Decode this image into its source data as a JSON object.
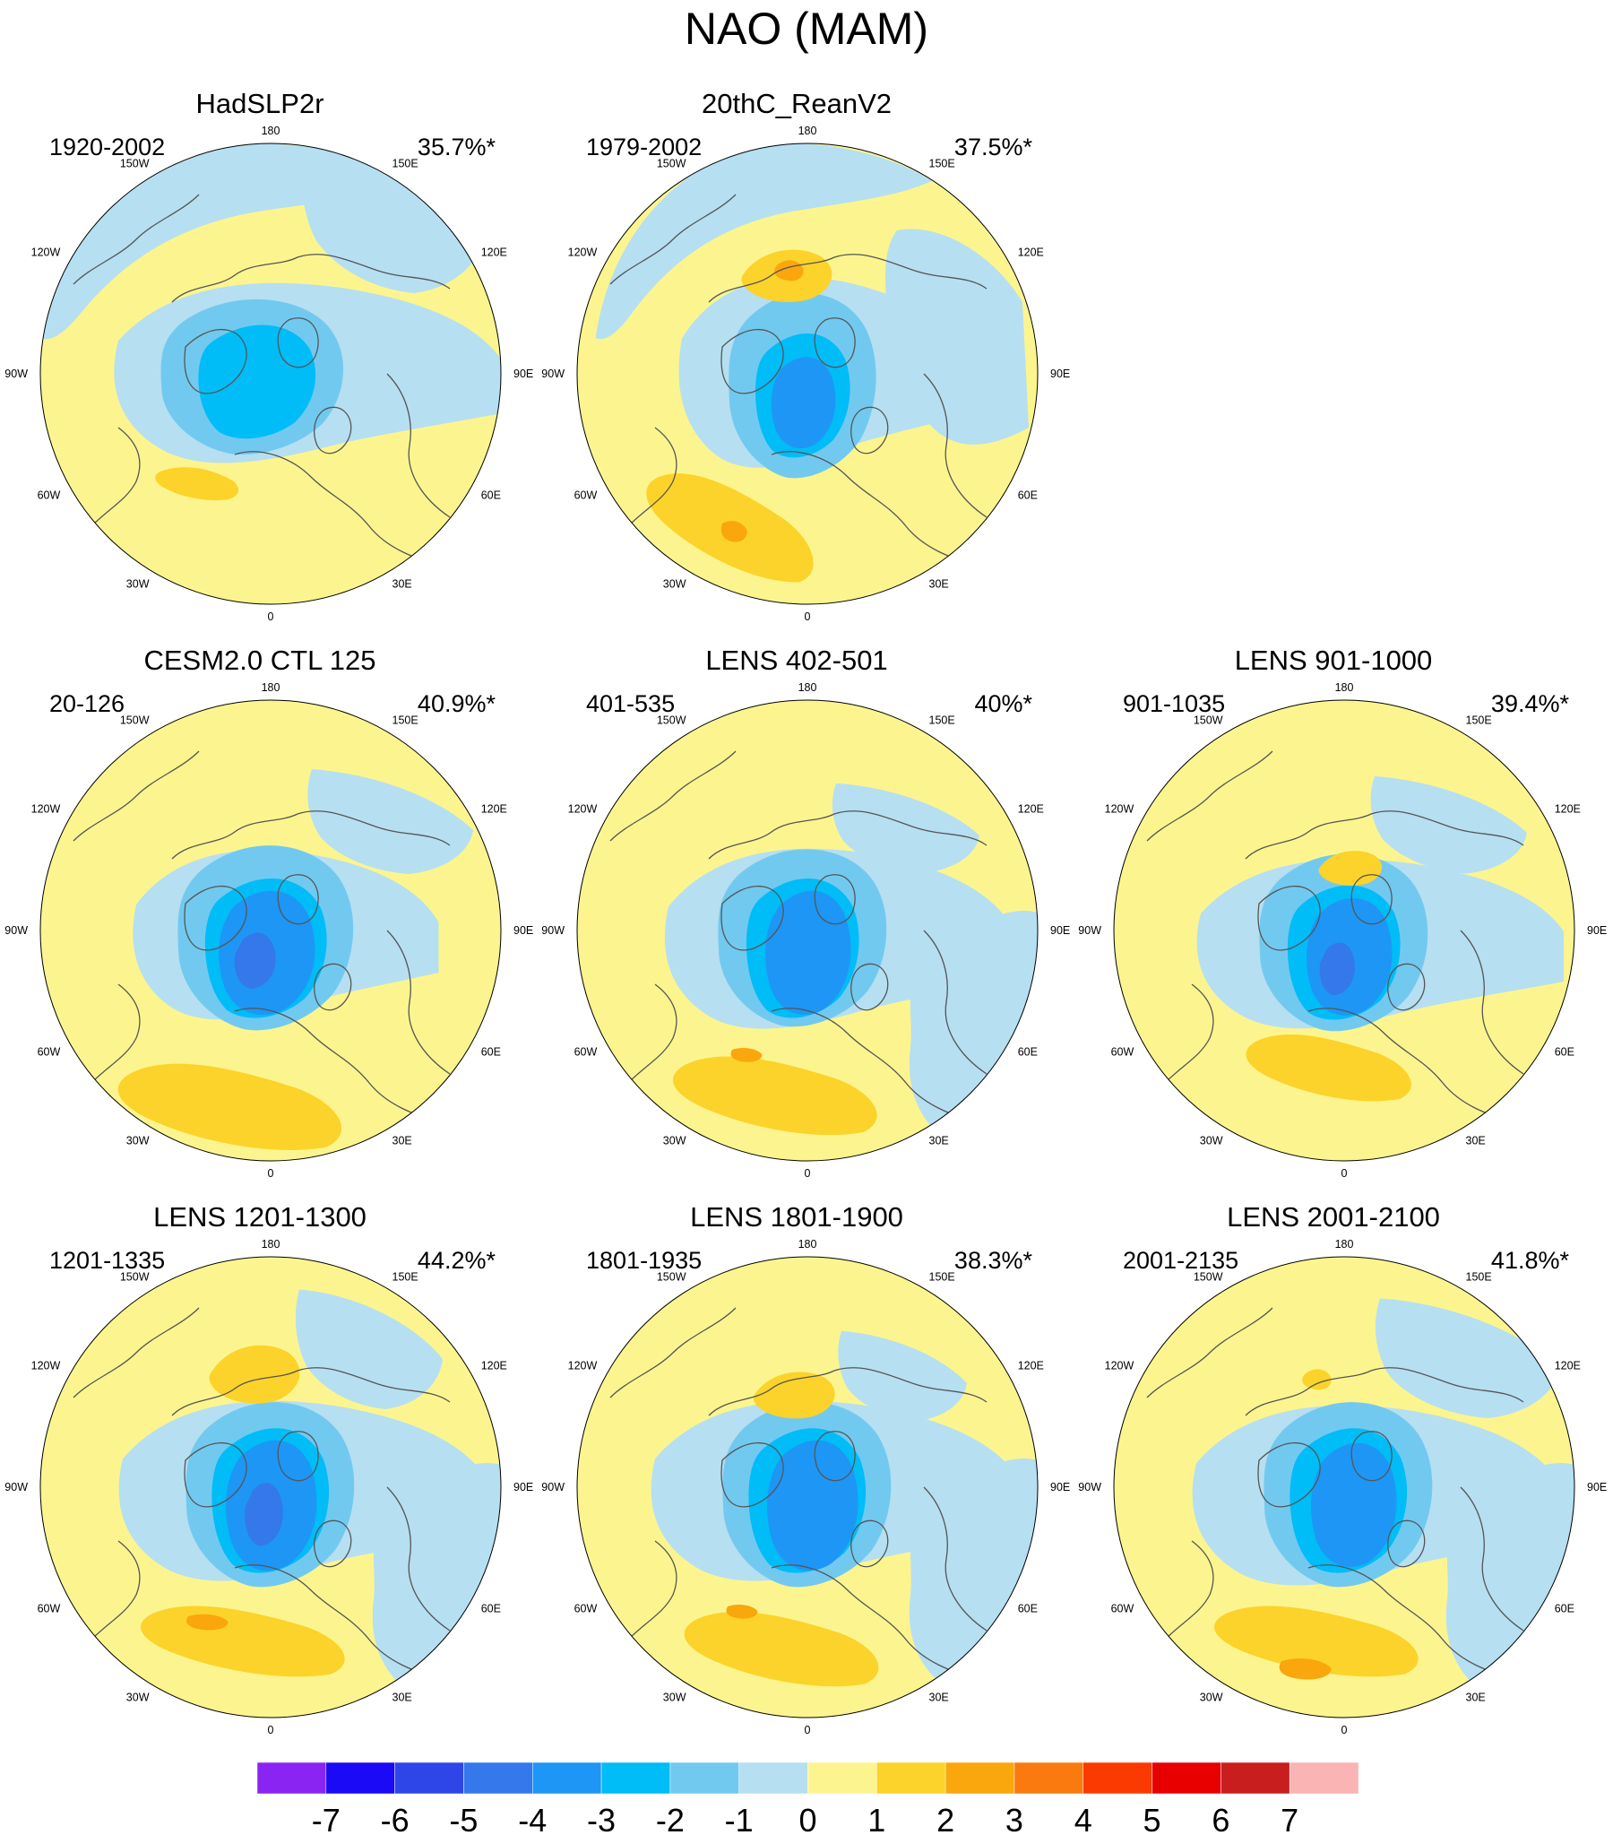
{
  "figure": {
    "title": "NAO (MAM)"
  },
  "panels": [
    {
      "title": "HadSLP2r",
      "period": "1920-2002",
      "variance": "35.7%*"
    },
    {
      "title": "20thC_ReanV2",
      "period": "1979-2002",
      "variance": "37.5%*"
    },
    {
      "title": "CESM2.0 CTL 125",
      "period": "20-126",
      "variance": "40.9%*"
    },
    {
      "title": "LENS 402-501",
      "period": "401-535",
      "variance": "40%*"
    },
    {
      "title": "LENS 901-1000",
      "period": "901-1035",
      "variance": "39.4%*"
    },
    {
      "title": "LENS 1201-1300",
      "period": "1201-1335",
      "variance": "44.2%*"
    },
    {
      "title": "LENS 1801-1900",
      "period": "1801-1935",
      "variance": "38.3%*"
    },
    {
      "title": "LENS 2001-2100",
      "period": "2001-2135",
      "variance": "41.8%*"
    }
  ],
  "longitude_labels": [
    "180",
    "150E",
    "120E",
    "90E",
    "60E",
    "30E",
    "0",
    "30W",
    "60W",
    "90W",
    "120W",
    "150W"
  ],
  "colorbar": {
    "labels": [
      "-7",
      "-6",
      "-5",
      "-4",
      "-3",
      "-2",
      "-1",
      "0",
      "1",
      "2",
      "3",
      "4",
      "5",
      "6",
      "7"
    ],
    "colors": [
      "#8a24f2",
      "#1a0af5",
      "#2e46e8",
      "#3478eb",
      "#1e96f5",
      "#00bcf7",
      "#72c9f0",
      "#b6dff2",
      "#fcf58f",
      "#fcd32a",
      "#faa60d",
      "#fa7a0f",
      "#fa3a00",
      "#e80000",
      "#c81e1e",
      "#fab4b4"
    ]
  },
  "colors": {
    "pos1": "#fcf58f",
    "pos2": "#fcd32a",
    "pos3": "#faa60d",
    "neg1": "#b6dff2",
    "neg2": "#72c9f0",
    "neg3": "#00bcf7",
    "neg4": "#1e96f5",
    "neg5": "#3478eb",
    "coast": "#555555"
  }
}
